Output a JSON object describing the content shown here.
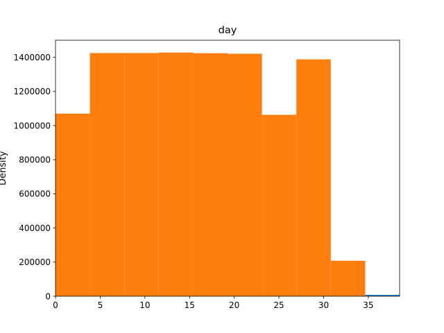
{
  "chart_data": {
    "type": "bar",
    "title": "day",
    "ylabel": "Density",
    "xlabel": "",
    "xlim": [
      0,
      38.5
    ],
    "ylim": [
      0,
      1500000
    ],
    "bar_color": "#ff7f0e",
    "line_color": "#1f77b4",
    "bins": [
      {
        "start": 0.0,
        "end": 3.85,
        "value": 1070000
      },
      {
        "start": 3.85,
        "end": 7.7,
        "value": 1425000
      },
      {
        "start": 7.7,
        "end": 11.55,
        "value": 1425000
      },
      {
        "start": 11.55,
        "end": 15.4,
        "value": 1428000
      },
      {
        "start": 15.4,
        "end": 19.25,
        "value": 1424000
      },
      {
        "start": 19.25,
        "end": 23.1,
        "value": 1421000
      },
      {
        "start": 23.1,
        "end": 26.95,
        "value": 1063000
      },
      {
        "start": 26.95,
        "end": 30.8,
        "value": 1388000
      },
      {
        "start": 30.8,
        "end": 34.65,
        "value": 208000
      }
    ],
    "baseline_series": {
      "x": [
        34.65,
        38.5
      ],
      "values": [
        3000,
        3000
      ]
    },
    "x_ticks": [
      0,
      5,
      10,
      15,
      20,
      25,
      30,
      35
    ],
    "x_tick_labels": [
      "0",
      "5",
      "10",
      "15",
      "20",
      "25",
      "30",
      "35"
    ],
    "y_ticks": [
      0,
      200000,
      400000,
      600000,
      800000,
      1000000,
      1200000,
      1400000
    ],
    "y_tick_labels": [
      "0",
      "200000",
      "400000",
      "600000",
      "800000",
      "1000000",
      "1200000",
      "1400000"
    ],
    "grid": false
  }
}
